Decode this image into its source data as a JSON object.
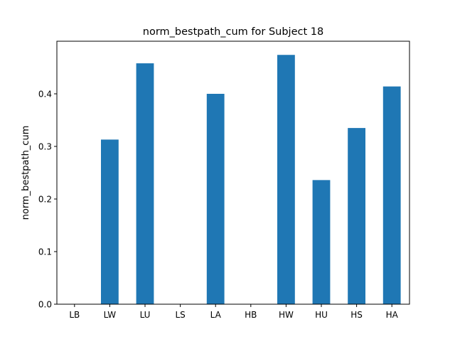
{
  "chart_data": {
    "type": "bar",
    "title": "norm_bestpath_cum for Subject 18",
    "xlabel": "",
    "ylabel": "norm_bestpath_cum",
    "categories": [
      "LB",
      "LW",
      "LU",
      "LS",
      "LA",
      "HB",
      "HW",
      "HU",
      "HS",
      "HA"
    ],
    "values": [
      0,
      0.313,
      0.458,
      0,
      0.4,
      0,
      0.474,
      0.236,
      0.335,
      0.414
    ],
    "ylim": [
      0,
      0.5
    ],
    "yticks": [
      0.0,
      0.1,
      0.2,
      0.3,
      0.4
    ],
    "ytick_labels": [
      "0.0",
      "0.1",
      "0.2",
      "0.3",
      "0.4"
    ],
    "bar_color": "#1f77b4",
    "grid": false
  }
}
